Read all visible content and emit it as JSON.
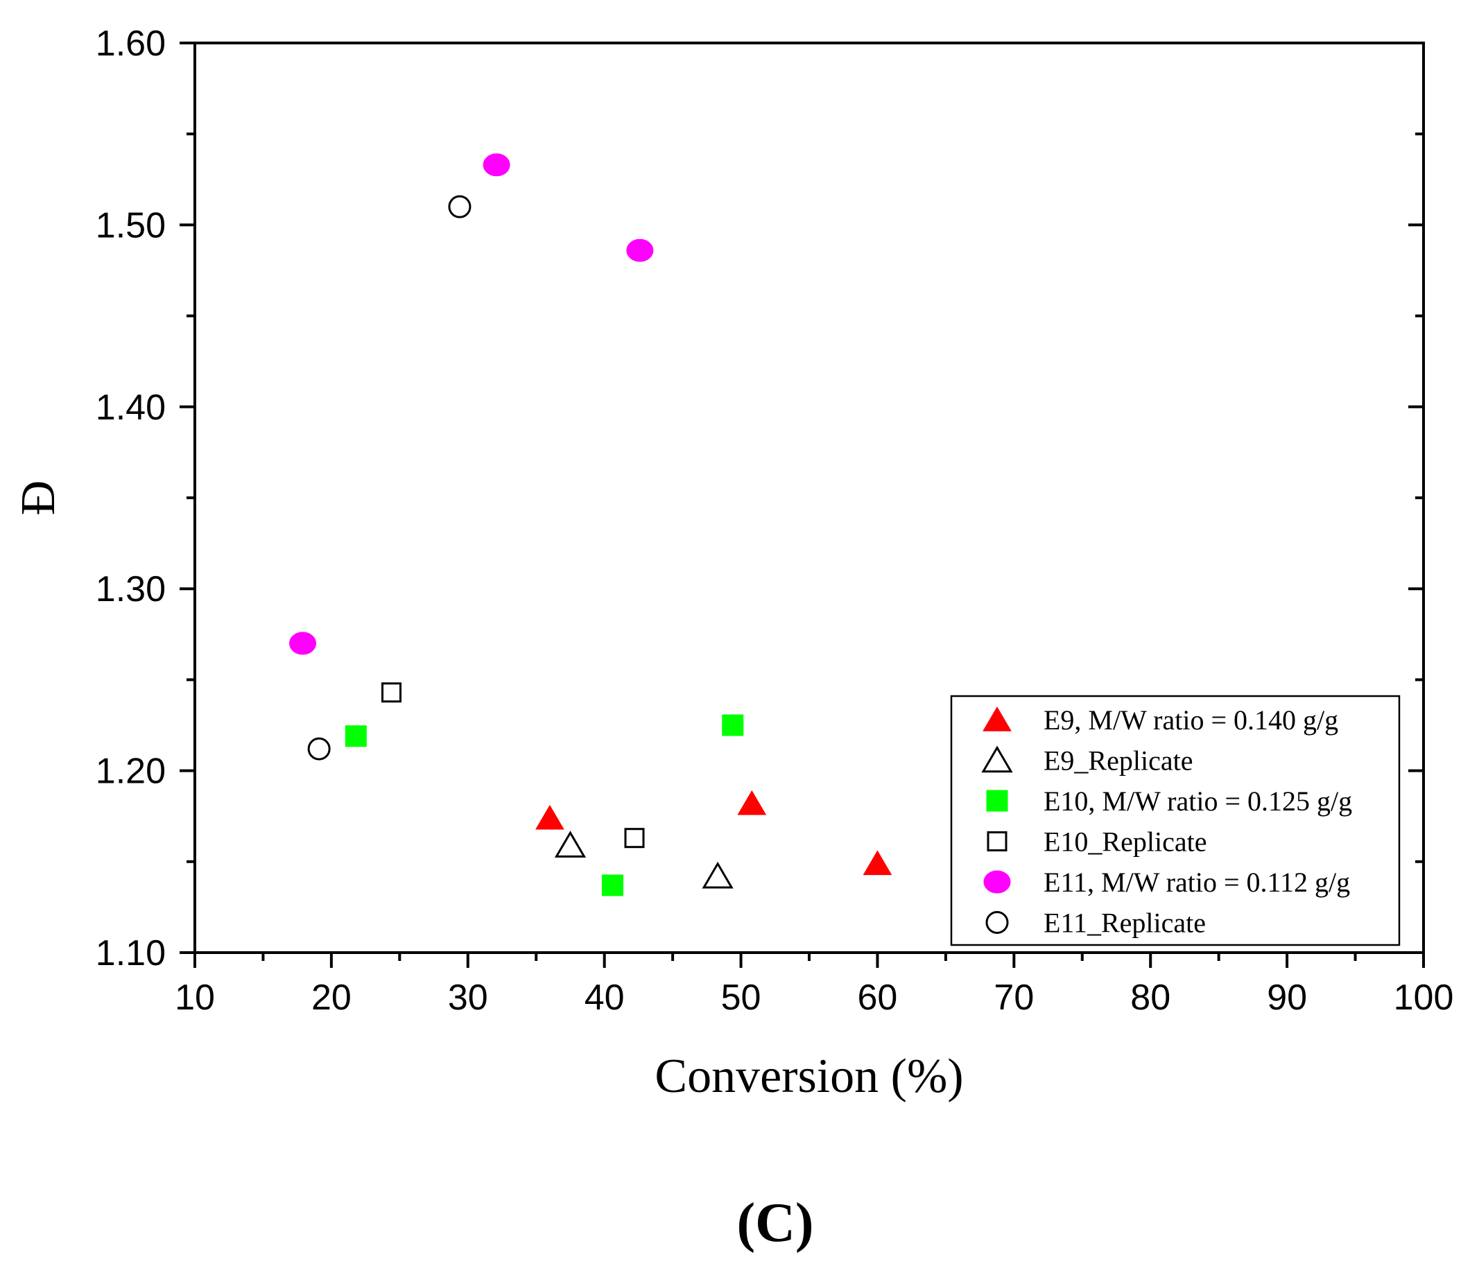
{
  "chart_data": {
    "type": "scatter",
    "panel_label": "(C)",
    "xlabel": "Conversion (%)",
    "ylabel": "Đ",
    "xlim": [
      10,
      100
    ],
    "ylim": [
      1.1,
      1.6
    ],
    "x_ticks": [
      10,
      20,
      30,
      40,
      50,
      60,
      70,
      80,
      90,
      100
    ],
    "x_tick_labels": [
      "10",
      "20",
      "30",
      "40",
      "50",
      "60",
      "70",
      "80",
      "90",
      "100"
    ],
    "y_ticks": [
      1.1,
      1.2,
      1.3,
      1.4,
      1.5,
      1.6
    ],
    "y_tick_labels": [
      "1.10",
      "1.20",
      "1.30",
      "1.40",
      "1.50",
      "1.60"
    ],
    "grid": false,
    "legend_position": "bottom-right",
    "series": [
      {
        "name": "E9, M/W ratio = 0.140 g/g",
        "marker": "triangle",
        "filled": true,
        "color": "#ff0000",
        "points": [
          [
            36.0,
            1.174
          ],
          [
            50.8,
            1.182
          ],
          [
            60.0,
            1.149
          ]
        ]
      },
      {
        "name": "E9_Replicate",
        "marker": "triangle",
        "filled": false,
        "color": "#000000",
        "points": [
          [
            37.5,
            1.159
          ],
          [
            48.3,
            1.142
          ]
        ]
      },
      {
        "name": "E10, M/W ratio = 0.125 g/g",
        "marker": "square",
        "filled": true,
        "color": "#00ff00",
        "points": [
          [
            21.8,
            1.219
          ],
          [
            40.6,
            1.137
          ],
          [
            49.4,
            1.225
          ]
        ]
      },
      {
        "name": "E10_Replicate",
        "marker": "square",
        "filled": false,
        "color": "#000000",
        "points": [
          [
            24.4,
            1.243
          ],
          [
            42.2,
            1.163
          ]
        ]
      },
      {
        "name": "E11, M/W ratio = 0.112 g/g",
        "marker": "circle",
        "filled": true,
        "color": "#ff00ff",
        "points": [
          [
            17.9,
            1.27
          ],
          [
            32.1,
            1.533
          ],
          [
            42.6,
            1.486
          ]
        ]
      },
      {
        "name": "E11_Replicate",
        "marker": "circle",
        "filled": false,
        "color": "#000000",
        "points": [
          [
            19.1,
            1.212
          ],
          [
            29.4,
            1.51
          ]
        ]
      }
    ]
  }
}
